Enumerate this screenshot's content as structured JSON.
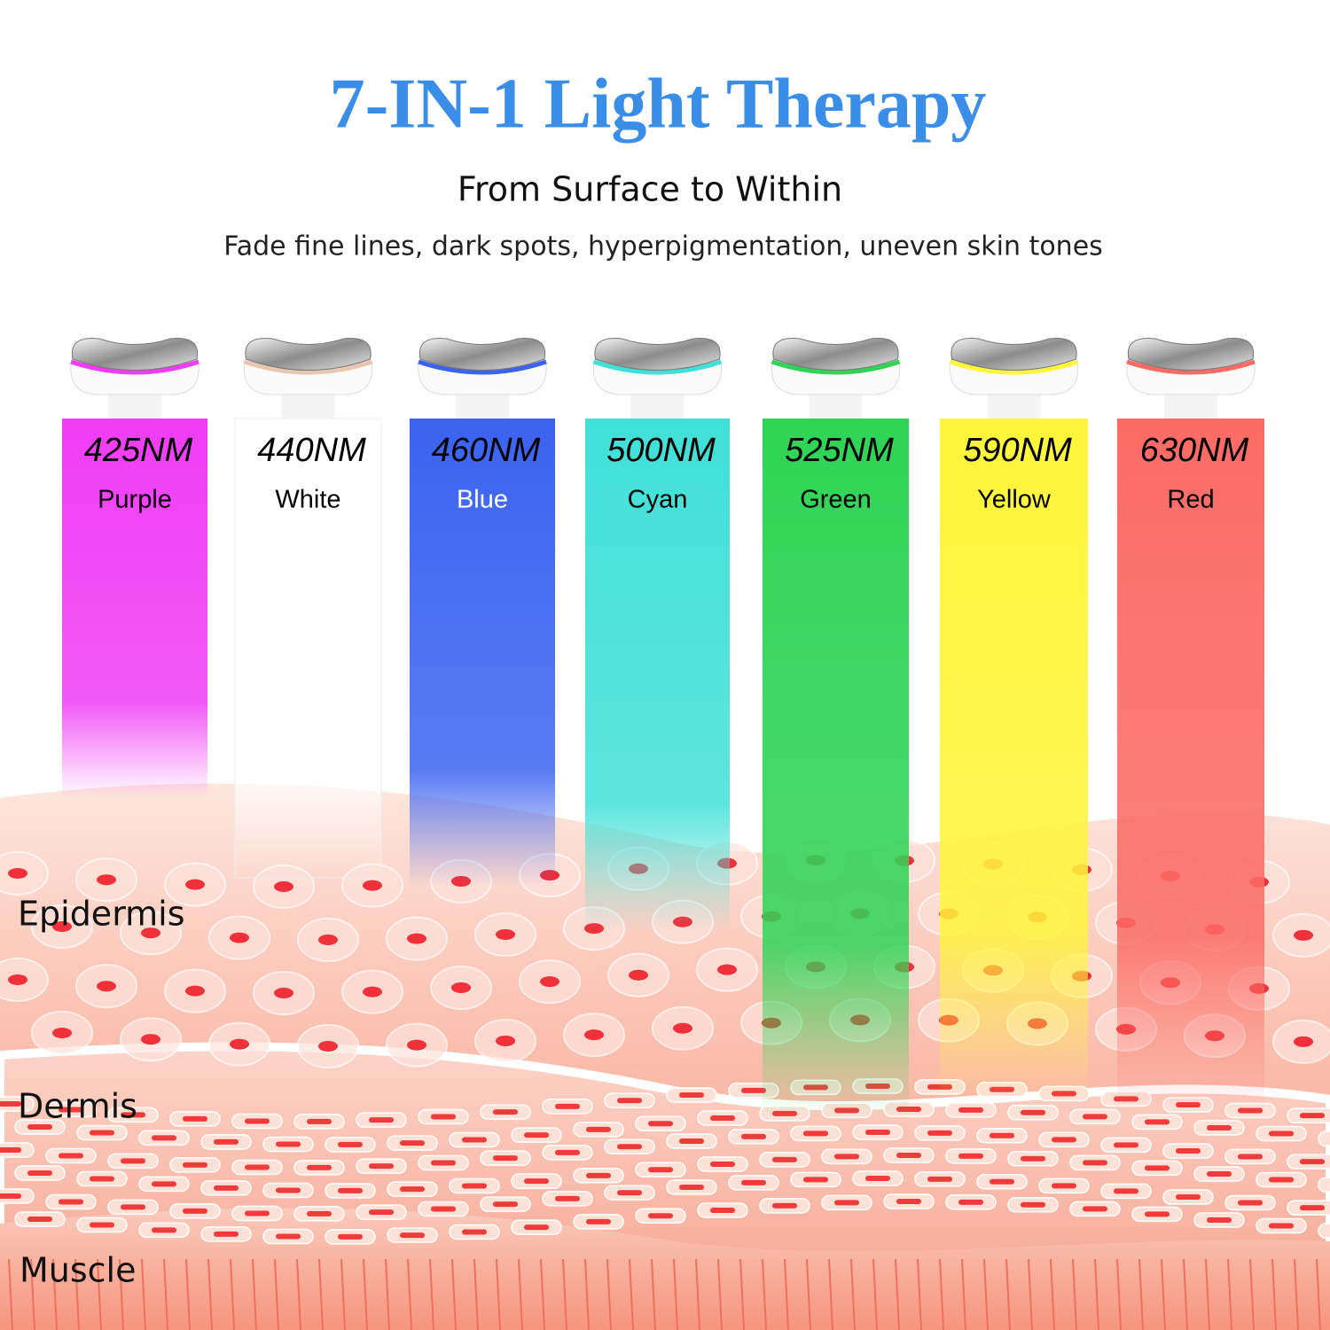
{
  "header": {
    "title": "7-IN-1 Light Therapy",
    "subtitle": "From Surface to Within",
    "tagline": "Fade fine lines, dark spots, hyperpigmentation, uneven skin tones"
  },
  "lights": [
    {
      "wavelength": "425NM",
      "name": "Purple"
    },
    {
      "wavelength": "440NM",
      "name": "White"
    },
    {
      "wavelength": "460NM",
      "name": "Blue"
    },
    {
      "wavelength": "500NM",
      "name": "Cyan"
    },
    {
      "wavelength": "525NM",
      "name": "Green"
    },
    {
      "wavelength": "590NM",
      "name": "Yellow"
    },
    {
      "wavelength": "630NM",
      "name": "Red"
    }
  ],
  "layers": [
    "Epidermis",
    "Dermis",
    "Muscle"
  ]
}
